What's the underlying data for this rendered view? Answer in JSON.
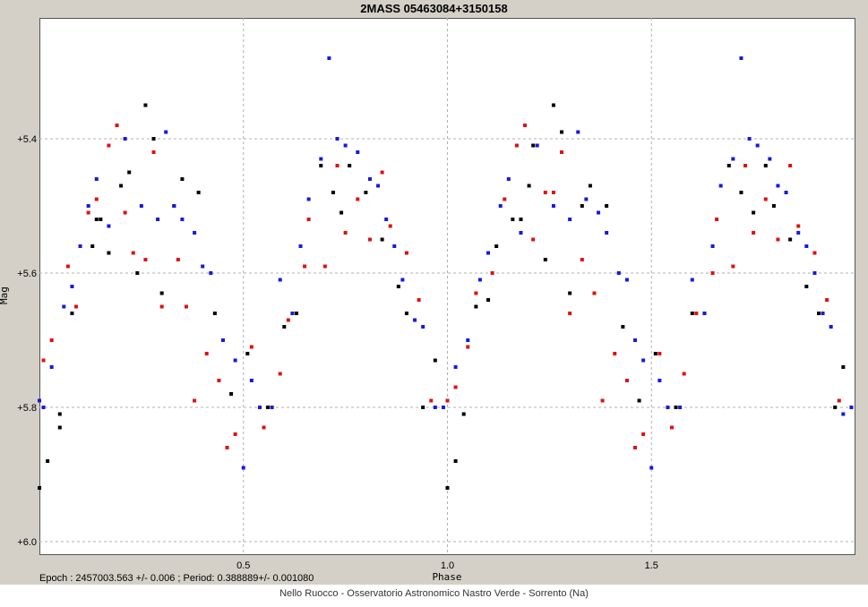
{
  "chart_data": {
    "type": "scatter",
    "title": "2MASS 05463084+3150158",
    "xlabel": "Phase",
    "ylabel": "Mag",
    "xlim": [
      0,
      2
    ],
    "ylim": [
      6.02,
      5.22
    ],
    "y_inverted": true,
    "x_ticks": [
      0.5,
      1.0,
      1.5
    ],
    "x_tick_labels": [
      "0.5",
      "1.0",
      "1.5"
    ],
    "y_ticks": [
      5.4,
      5.6,
      5.8,
      6.0
    ],
    "y_tick_labels": [
      "+5.4",
      "+5.6",
      "+5.8",
      "+6.0"
    ],
    "grid": true,
    "series": [
      {
        "color": "#000000",
        "points": [
          [
            0.0,
            5.92
          ],
          [
            0.02,
            5.88
          ],
          [
            0.05,
            5.81
          ],
          [
            0.05,
            5.83
          ],
          [
            0.08,
            5.66
          ],
          [
            0.09,
            5.65
          ],
          [
            0.13,
            5.56
          ],
          [
            0.14,
            5.52
          ],
          [
            0.15,
            5.52
          ],
          [
            0.17,
            5.57
          ],
          [
            0.2,
            5.47
          ],
          [
            0.22,
            5.45
          ],
          [
            0.24,
            5.6
          ],
          [
            0.26,
            5.35
          ],
          [
            0.28,
            5.4
          ],
          [
            0.3,
            5.63
          ],
          [
            0.33,
            5.5
          ],
          [
            0.35,
            5.46
          ],
          [
            0.39,
            5.48
          ],
          [
            0.43,
            5.66
          ],
          [
            0.47,
            5.78
          ],
          [
            0.51,
            5.72
          ],
          [
            0.56,
            5.8
          ],
          [
            0.6,
            5.68
          ],
          [
            0.63,
            5.66
          ],
          [
            0.69,
            5.44
          ],
          [
            0.72,
            5.48
          ],
          [
            0.74,
            5.51
          ],
          [
            0.76,
            5.44
          ],
          [
            0.8,
            5.48
          ],
          [
            0.84,
            5.55
          ],
          [
            0.88,
            5.62
          ],
          [
            0.9,
            5.66
          ],
          [
            0.94,
            5.8
          ],
          [
            0.97,
            5.73
          ],
          [
            1.0,
            5.92
          ],
          [
            1.02,
            5.88
          ],
          [
            1.04,
            5.81
          ],
          [
            1.07,
            5.65
          ],
          [
            1.1,
            5.64
          ],
          [
            1.12,
            5.56
          ],
          [
            1.16,
            5.52
          ],
          [
            1.18,
            5.52
          ],
          [
            1.2,
            5.47
          ],
          [
            1.21,
            5.41
          ],
          [
            1.24,
            5.58
          ],
          [
            1.26,
            5.35
          ],
          [
            1.28,
            5.39
          ],
          [
            1.3,
            5.63
          ],
          [
            1.33,
            5.5
          ],
          [
            1.35,
            5.47
          ],
          [
            1.39,
            5.5
          ],
          [
            1.43,
            5.68
          ],
          [
            1.47,
            5.79
          ],
          [
            1.51,
            5.72
          ],
          [
            1.56,
            5.8
          ],
          [
            1.6,
            5.66
          ],
          [
            1.63,
            5.66
          ],
          [
            1.69,
            5.44
          ],
          [
            1.72,
            5.48
          ],
          [
            1.75,
            5.51
          ],
          [
            1.78,
            5.44
          ],
          [
            1.8,
            5.5
          ],
          [
            1.84,
            5.55
          ],
          [
            1.88,
            5.62
          ],
          [
            1.91,
            5.66
          ],
          [
            1.95,
            5.8
          ],
          [
            1.97,
            5.74
          ]
        ]
      },
      {
        "color": "#e01010",
        "points": [
          [
            0.01,
            5.73
          ],
          [
            0.03,
            5.7
          ],
          [
            0.07,
            5.59
          ],
          [
            0.09,
            5.65
          ],
          [
            0.12,
            5.51
          ],
          [
            0.14,
            5.49
          ],
          [
            0.17,
            5.41
          ],
          [
            0.19,
            5.38
          ],
          [
            0.21,
            5.51
          ],
          [
            0.23,
            5.57
          ],
          [
            0.26,
            5.58
          ],
          [
            0.28,
            5.42
          ],
          [
            0.3,
            5.65
          ],
          [
            0.34,
            5.58
          ],
          [
            0.36,
            5.65
          ],
          [
            0.38,
            5.79
          ],
          [
            0.41,
            5.72
          ],
          [
            0.44,
            5.76
          ],
          [
            0.46,
            5.86
          ],
          [
            0.48,
            5.84
          ],
          [
            0.52,
            5.71
          ],
          [
            0.55,
            5.83
          ],
          [
            0.59,
            5.75
          ],
          [
            0.61,
            5.67
          ],
          [
            0.65,
            5.59
          ],
          [
            0.66,
            5.52
          ],
          [
            0.7,
            5.59
          ],
          [
            0.73,
            5.44
          ],
          [
            0.75,
            5.54
          ],
          [
            0.78,
            5.49
          ],
          [
            0.81,
            5.55
          ],
          [
            0.84,
            5.45
          ],
          [
            0.86,
            5.53
          ],
          [
            0.9,
            5.57
          ],
          [
            0.93,
            5.64
          ],
          [
            0.96,
            5.79
          ],
          [
            1.0,
            5.79
          ],
          [
            1.02,
            5.77
          ],
          [
            1.05,
            5.71
          ],
          [
            1.07,
            5.63
          ],
          [
            1.11,
            5.6
          ],
          [
            1.14,
            5.49
          ],
          [
            1.17,
            5.41
          ],
          [
            1.19,
            5.38
          ],
          [
            1.21,
            5.55
          ],
          [
            1.24,
            5.48
          ],
          [
            1.26,
            5.48
          ],
          [
            1.28,
            5.42
          ],
          [
            1.3,
            5.66
          ],
          [
            1.33,
            5.58
          ],
          [
            1.36,
            5.63
          ],
          [
            1.38,
            5.79
          ],
          [
            1.41,
            5.72
          ],
          [
            1.44,
            5.76
          ],
          [
            1.46,
            5.86
          ],
          [
            1.48,
            5.84
          ],
          [
            1.52,
            5.72
          ],
          [
            1.55,
            5.83
          ],
          [
            1.58,
            5.75
          ],
          [
            1.61,
            5.66
          ],
          [
            1.65,
            5.6
          ],
          [
            1.66,
            5.52
          ],
          [
            1.7,
            5.59
          ],
          [
            1.73,
            5.44
          ],
          [
            1.75,
            5.54
          ],
          [
            1.78,
            5.49
          ],
          [
            1.81,
            5.55
          ],
          [
            1.84,
            5.44
          ],
          [
            1.86,
            5.53
          ],
          [
            1.9,
            5.57
          ],
          [
            1.93,
            5.64
          ],
          [
            1.96,
            5.79
          ]
        ]
      },
      {
        "color": "#1818e0",
        "points": [
          [
            0.0,
            5.79
          ],
          [
            0.01,
            5.8
          ],
          [
            0.03,
            5.74
          ],
          [
            0.06,
            5.65
          ],
          [
            0.08,
            5.62
          ],
          [
            0.1,
            5.56
          ],
          [
            0.12,
            5.5
          ],
          [
            0.14,
            5.46
          ],
          [
            0.17,
            5.53
          ],
          [
            0.21,
            5.4
          ],
          [
            0.25,
            5.5
          ],
          [
            0.29,
            5.52
          ],
          [
            0.31,
            5.39
          ],
          [
            0.33,
            5.5
          ],
          [
            0.35,
            5.52
          ],
          [
            0.38,
            5.54
          ],
          [
            0.4,
            5.59
          ],
          [
            0.42,
            5.6
          ],
          [
            0.45,
            5.7
          ],
          [
            0.48,
            5.73
          ],
          [
            0.5,
            5.89
          ],
          [
            0.52,
            5.76
          ],
          [
            0.54,
            5.8
          ],
          [
            0.57,
            5.8
          ],
          [
            0.59,
            5.61
          ],
          [
            0.62,
            5.66
          ],
          [
            0.64,
            5.56
          ],
          [
            0.66,
            5.49
          ],
          [
            0.69,
            5.43
          ],
          [
            0.71,
            5.28
          ],
          [
            0.73,
            5.4
          ],
          [
            0.75,
            5.41
          ],
          [
            0.78,
            5.42
          ],
          [
            0.81,
            5.46
          ],
          [
            0.83,
            5.47
          ],
          [
            0.85,
            5.52
          ],
          [
            0.87,
            5.56
          ],
          [
            0.89,
            5.61
          ],
          [
            0.92,
            5.67
          ],
          [
            0.94,
            5.68
          ],
          [
            0.97,
            5.8
          ],
          [
            0.99,
            5.8
          ],
          [
            1.02,
            5.74
          ],
          [
            1.05,
            5.7
          ],
          [
            1.08,
            5.61
          ],
          [
            1.1,
            5.57
          ],
          [
            1.13,
            5.5
          ],
          [
            1.15,
            5.46
          ],
          [
            1.18,
            5.54
          ],
          [
            1.22,
            5.41
          ],
          [
            1.26,
            5.5
          ],
          [
            1.3,
            5.52
          ],
          [
            1.32,
            5.39
          ],
          [
            1.34,
            5.49
          ],
          [
            1.37,
            5.51
          ],
          [
            1.39,
            5.54
          ],
          [
            1.42,
            5.6
          ],
          [
            1.44,
            5.61
          ],
          [
            1.46,
            5.7
          ],
          [
            1.48,
            5.73
          ],
          [
            1.5,
            5.89
          ],
          [
            1.52,
            5.76
          ],
          [
            1.54,
            5.8
          ],
          [
            1.57,
            5.8
          ],
          [
            1.6,
            5.61
          ],
          [
            1.63,
            5.66
          ],
          [
            1.65,
            5.56
          ],
          [
            1.67,
            5.47
          ],
          [
            1.7,
            5.43
          ],
          [
            1.72,
            5.28
          ],
          [
            1.74,
            5.4
          ],
          [
            1.76,
            5.41
          ],
          [
            1.79,
            5.43
          ],
          [
            1.81,
            5.47
          ],
          [
            1.83,
            5.48
          ],
          [
            1.86,
            5.54
          ],
          [
            1.88,
            5.56
          ],
          [
            1.9,
            5.6
          ],
          [
            1.92,
            5.66
          ],
          [
            1.94,
            5.68
          ],
          [
            1.97,
            5.81
          ],
          [
            1.99,
            5.8
          ]
        ]
      }
    ]
  },
  "footer": {
    "epoch_text": "Epoch : 2457003.563 +/- 0.006 ; Period: 0.388889+/- 0.001080",
    "credit_text": "Nello Ruocco - Osservatorio Astronomico Nastro Verde - Sorrento (Na)"
  }
}
